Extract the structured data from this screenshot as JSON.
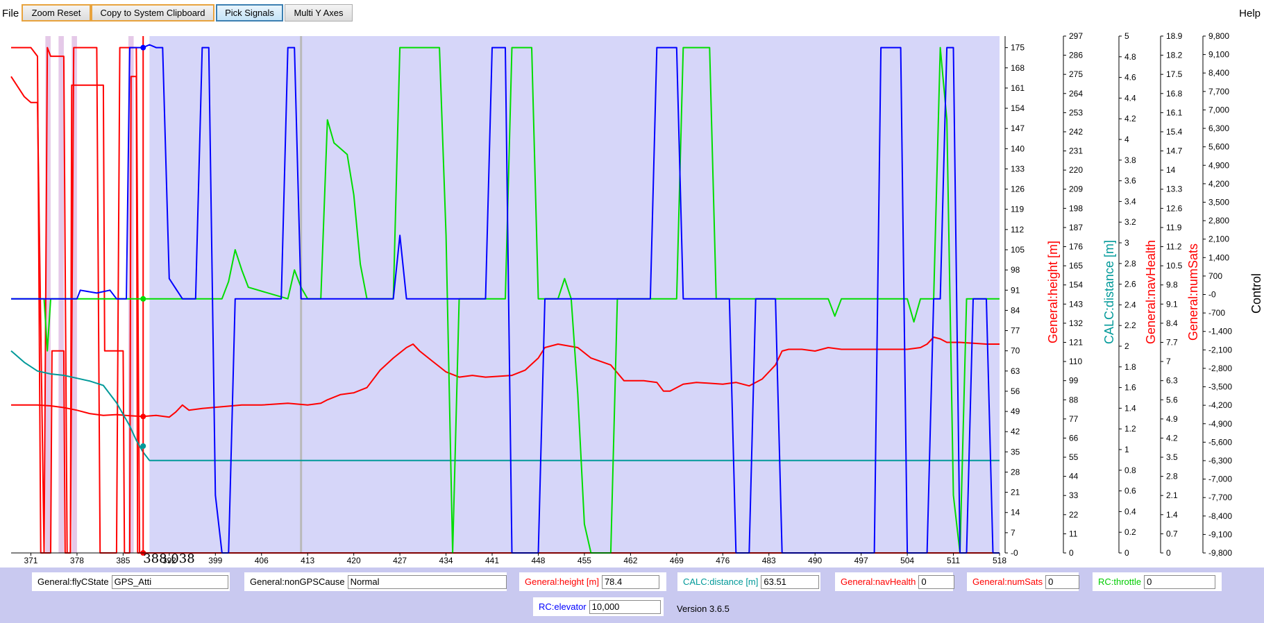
{
  "menu": {
    "file": "File",
    "help": "Help"
  },
  "toolbar": {
    "zoom_reset": "Zoom Reset",
    "copy_clipboard": "Copy to System Clipboard",
    "pick_signals": "Pick Signals",
    "multi_y": "Multi Y Axes"
  },
  "cursor": {
    "time_label": "388.038"
  },
  "version": "Version 3.6.5",
  "fields": [
    {
      "label": "General:flyCState",
      "value": "GPS_Atti",
      "color": "#000000"
    },
    {
      "label": "General:nonGPSCause",
      "value": "Normal",
      "color": "#000000"
    },
    {
      "label": "General:height [m]",
      "value": "78.4",
      "color": "#ff0000"
    },
    {
      "label": "CALC:distance [m]",
      "value": "63.51",
      "color": "#009999"
    },
    {
      "label": "General:navHealth",
      "value": "0",
      "color": "#ff0000"
    },
    {
      "label": "General:numSats",
      "value": "0",
      "color": "#ff0000"
    },
    {
      "label": "RC:throttle",
      "value": "0",
      "color": "#00cc00"
    },
    {
      "label": "RC:elevator",
      "value": "10,000",
      "color": "#0000ff"
    }
  ],
  "chart_data": {
    "type": "line",
    "x_ticks": [
      "371",
      "378",
      "385",
      "392",
      "399",
      "406",
      "413",
      "420",
      "427",
      "434",
      "441",
      "448",
      "455",
      "462",
      "469",
      "476",
      "483",
      "490",
      "497",
      "504",
      "511",
      "518"
    ],
    "xlim": [
      368,
      518
    ],
    "cursor_x": 388.038,
    "axes": [
      {
        "name": "primary",
        "title": "",
        "color": "#000000",
        "ticks": [
          "-0",
          "7",
          "14",
          "21",
          "28",
          "35",
          "42",
          "49",
          "56",
          "63",
          "70",
          "77",
          "84",
          "91",
          "98",
          "105",
          "112",
          "119",
          "126",
          "133",
          "140",
          "147",
          "154",
          "161",
          "168",
          "175"
        ]
      },
      {
        "name": "height",
        "title": "General:height [m]",
        "color": "#ff0000",
        "ticks": [
          "0",
          "11",
          "22",
          "33",
          "44",
          "55",
          "66",
          "77",
          "88",
          "99",
          "110",
          "121",
          "132",
          "143",
          "154",
          "165",
          "176",
          "187",
          "198",
          "209",
          "220",
          "231",
          "242",
          "253",
          "264",
          "275",
          "286",
          "297"
        ]
      },
      {
        "name": "distance",
        "title": "CALC:distance [m]",
        "color": "#009999",
        "ticks": [
          "0",
          "0.2",
          "0.4",
          "0.6",
          "0.8",
          "1",
          "1.2",
          "1.4",
          "1.6",
          "1.8",
          "2",
          "2.2",
          "2.4",
          "2.6",
          "2.8",
          "3",
          "3.2",
          "3.4",
          "3.6",
          "3.8",
          "4",
          "4.2",
          "4.4",
          "4.6",
          "4.8",
          "5"
        ]
      },
      {
        "name": "navHealth",
        "title": "General:navHealth",
        "color": "#ff0000",
        "ticks": [
          "0",
          "0.7",
          "1.4",
          "2.1",
          "2.8",
          "3.5",
          "4.2",
          "4.9",
          "5.6",
          "6.3",
          "7",
          "7.7",
          "8.4",
          "9.1",
          "9.8",
          "10.5",
          "11.2",
          "11.9",
          "12.6",
          "13.3",
          "14",
          "14.7",
          "15.4",
          "16.1",
          "16.8",
          "17.5",
          "18.2",
          "18.9"
        ]
      },
      {
        "name": "numSats",
        "title": "General:numSats",
        "color": "#ff0000",
        "ticks": [
          "-9,800",
          "-9,100",
          "-8,400",
          "-7,700",
          "-7,000",
          "-6,300",
          "-5,600",
          "-4,900",
          "-4,200",
          "-3,500",
          "-2,800",
          "-2,100",
          "-1,400",
          "-700",
          "-0",
          "700",
          "1,400",
          "2,100",
          "2,800",
          "3,500",
          "4,200",
          "4,900",
          "5,600",
          "6,300",
          "7,000",
          "7,700",
          "8,400",
          "9,100",
          "9,800"
        ]
      },
      {
        "name": "control",
        "title": "Control",
        "color": "#000000",
        "ticks": []
      }
    ],
    "series": [
      {
        "name": "General:height [m]",
        "color": "#ff0000",
        "axis": "height",
        "points": [
          [
            368,
            85
          ],
          [
            372,
            85
          ],
          [
            374,
            84.5
          ],
          [
            376,
            83.5
          ],
          [
            378,
            82
          ],
          [
            380,
            80
          ],
          [
            382,
            79
          ],
          [
            384,
            79.5
          ],
          [
            386,
            78.8
          ],
          [
            388,
            78.4
          ],
          [
            390,
            79
          ],
          [
            392,
            78
          ],
          [
            393,
            81
          ],
          [
            394,
            85
          ],
          [
            395,
            82
          ],
          [
            397,
            83
          ],
          [
            400,
            84
          ],
          [
            403,
            85
          ],
          [
            406,
            85
          ],
          [
            410,
            86
          ],
          [
            413,
            85
          ],
          [
            415,
            86
          ],
          [
            416,
            88
          ],
          [
            418,
            91
          ],
          [
            420,
            92
          ],
          [
            422,
            95
          ],
          [
            424,
            105
          ],
          [
            426,
            112
          ],
          [
            428,
            118
          ],
          [
            429,
            120
          ],
          [
            430,
            116
          ],
          [
            432,
            110
          ],
          [
            434,
            104
          ],
          [
            436,
            101
          ],
          [
            438,
            102
          ],
          [
            440,
            101
          ],
          [
            444,
            102
          ],
          [
            446,
            105
          ],
          [
            448,
            112
          ],
          [
            449,
            118
          ],
          [
            451,
            120
          ],
          [
            454,
            118
          ],
          [
            456,
            112
          ],
          [
            459,
            108
          ],
          [
            461,
            99
          ],
          [
            464,
            99
          ],
          [
            466,
            98
          ],
          [
            467,
            93
          ],
          [
            468,
            93
          ],
          [
            470,
            97
          ],
          [
            472,
            98
          ],
          [
            476,
            97
          ],
          [
            478,
            98
          ],
          [
            480,
            96
          ],
          [
            482,
            100
          ],
          [
            484,
            108
          ],
          [
            485,
            116
          ],
          [
            486,
            117
          ],
          [
            488,
            117
          ],
          [
            490,
            116
          ],
          [
            492,
            118
          ],
          [
            494,
            117
          ],
          [
            496,
            117
          ],
          [
            500,
            117
          ],
          [
            504,
            117
          ],
          [
            506,
            118
          ],
          [
            507,
            120
          ],
          [
            508,
            124
          ],
          [
            509,
            123
          ],
          [
            510,
            121
          ],
          [
            512,
            121
          ],
          [
            516,
            120
          ],
          [
            518,
            120
          ]
        ]
      },
      {
        "name": "General:navHealth",
        "color": "#ff0000",
        "axis": "primary",
        "points": [
          [
            368,
            165
          ],
          [
            370,
            158
          ],
          [
            371,
            156
          ],
          [
            372,
            156
          ],
          [
            373,
            0
          ],
          [
            374,
            0
          ],
          [
            374.2,
            70
          ],
          [
            376,
            70
          ],
          [
            376.2,
            0
          ],
          [
            377,
            0
          ],
          [
            377.2,
            162
          ],
          [
            382,
            162
          ],
          [
            382.2,
            70
          ],
          [
            385,
            70
          ],
          [
            385.2,
            0
          ],
          [
            386,
            0
          ],
          [
            386.2,
            165
          ],
          [
            387,
            165
          ],
          [
            387.2,
            0
          ],
          [
            518,
            0
          ]
        ]
      },
      {
        "name": "General:numSats",
        "color": "#ff0000",
        "axis": "primary",
        "points": [
          [
            368,
            175
          ],
          [
            371,
            175
          ],
          [
            372,
            172
          ],
          [
            372.5,
            0
          ],
          [
            373,
            0
          ],
          [
            373.5,
            175
          ],
          [
            374,
            172
          ],
          [
            376,
            172
          ],
          [
            376.5,
            0
          ],
          [
            377,
            0
          ],
          [
            377.5,
            175
          ],
          [
            381,
            175
          ],
          [
            381.5,
            0
          ],
          [
            384,
            0
          ],
          [
            384.5,
            175
          ],
          [
            387,
            175
          ],
          [
            387.5,
            0
          ],
          [
            518,
            0
          ]
        ]
      },
      {
        "name": "CALC:distance [m]",
        "color": "#009999",
        "axis": "primary",
        "points": [
          [
            368,
            70
          ],
          [
            370,
            66
          ],
          [
            372,
            63
          ],
          [
            374,
            62
          ],
          [
            376,
            61.5
          ],
          [
            378,
            60.5
          ],
          [
            380,
            59.5
          ],
          [
            382,
            58
          ],
          [
            384,
            52
          ],
          [
            386,
            44
          ],
          [
            387,
            39
          ],
          [
            388,
            35
          ],
          [
            389,
            32
          ],
          [
            518,
            32
          ]
        ]
      },
      {
        "name": "RC:throttle",
        "color": "#00dd00",
        "axis": "primary",
        "points": [
          [
            368,
            88
          ],
          [
            373,
            88
          ],
          [
            373.5,
            70
          ],
          [
            374,
            88
          ],
          [
            400,
            88
          ],
          [
            401,
            94
          ],
          [
            402,
            105
          ],
          [
            403,
            98
          ],
          [
            404,
            92
          ],
          [
            410,
            88
          ],
          [
            411,
            98
          ],
          [
            412,
            92
          ],
          [
            413,
            88
          ],
          [
            415,
            88
          ],
          [
            416,
            150
          ],
          [
            417,
            142
          ],
          [
            418,
            140
          ],
          [
            419,
            138
          ],
          [
            420,
            124
          ],
          [
            421,
            100
          ],
          [
            422,
            88
          ],
          [
            426,
            88
          ],
          [
            427,
            175
          ],
          [
            433,
            175
          ],
          [
            434,
            110
          ],
          [
            435,
            0
          ],
          [
            436,
            88
          ],
          [
            443,
            88
          ],
          [
            444,
            175
          ],
          [
            447,
            175
          ],
          [
            448,
            88
          ],
          [
            451,
            88
          ],
          [
            452,
            95
          ],
          [
            453,
            88
          ],
          [
            454,
            55
          ],
          [
            455,
            10
          ],
          [
            456,
            0
          ],
          [
            459,
            0
          ],
          [
            460,
            88
          ],
          [
            469,
            88
          ],
          [
            470,
            175
          ],
          [
            474,
            175
          ],
          [
            475,
            88
          ],
          [
            492,
            88
          ],
          [
            493,
            82
          ],
          [
            494,
            88
          ],
          [
            504,
            88
          ],
          [
            505,
            80
          ],
          [
            506,
            88
          ],
          [
            508,
            88
          ],
          [
            509,
            175
          ],
          [
            510,
            150
          ],
          [
            511,
            20
          ],
          [
            512,
            0
          ],
          [
            513,
            88
          ],
          [
            518,
            88
          ]
        ]
      },
      {
        "name": "RC:elevator",
        "color": "#0000ff",
        "axis": "primary",
        "points": [
          [
            368,
            88
          ],
          [
            378,
            88
          ],
          [
            378.5,
            91
          ],
          [
            381,
            90
          ],
          [
            383,
            91
          ],
          [
            384,
            88
          ],
          [
            385.5,
            88
          ],
          [
            386,
            175
          ],
          [
            388,
            175
          ],
          [
            389,
            176
          ],
          [
            390,
            175
          ],
          [
            391,
            175
          ],
          [
            392,
            95
          ],
          [
            394,
            88
          ],
          [
            395,
            88
          ],
          [
            396,
            88
          ],
          [
            397,
            175
          ],
          [
            398,
            175
          ],
          [
            399,
            20
          ],
          [
            400,
            0
          ],
          [
            401,
            0
          ],
          [
            402,
            88
          ],
          [
            409,
            88
          ],
          [
            410,
            175
          ],
          [
            411,
            175
          ],
          [
            412,
            88
          ],
          [
            425,
            88
          ],
          [
            426,
            88
          ],
          [
            427,
            110
          ],
          [
            428,
            88
          ],
          [
            440,
            88
          ],
          [
            441,
            175
          ],
          [
            443,
            175
          ],
          [
            444,
            0
          ],
          [
            448,
            0
          ],
          [
            449,
            88
          ],
          [
            465,
            88
          ],
          [
            466,
            175
          ],
          [
            469,
            175
          ],
          [
            470,
            88
          ],
          [
            477,
            88
          ],
          [
            478,
            0
          ],
          [
            480,
            0
          ],
          [
            481,
            88
          ],
          [
            484,
            88
          ],
          [
            485,
            0
          ],
          [
            499,
            0
          ],
          [
            500,
            175
          ],
          [
            503,
            175
          ],
          [
            504,
            0
          ],
          [
            507,
            0
          ],
          [
            508,
            88
          ],
          [
            509,
            88
          ],
          [
            510,
            175
          ],
          [
            511,
            175
          ],
          [
            512,
            0
          ],
          [
            513,
            0
          ],
          [
            514,
            88
          ],
          [
            515,
            88
          ],
          [
            516,
            88
          ],
          [
            517,
            0
          ],
          [
            518,
            0
          ]
        ]
      }
    ],
    "shading": {
      "color": "#d6d6f9",
      "stripe_color": "#e5c9e8"
    },
    "grid": false,
    "legend": "none"
  }
}
